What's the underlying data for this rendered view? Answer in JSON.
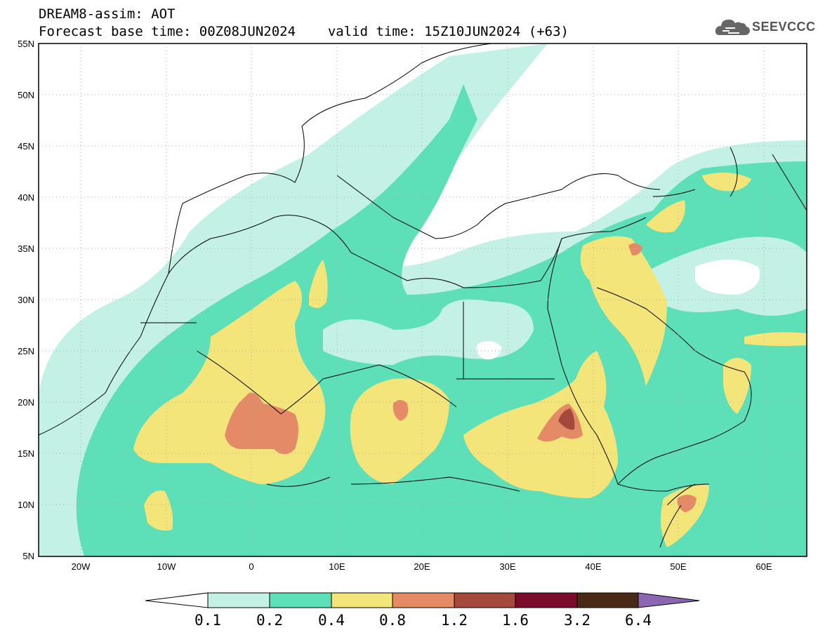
{
  "header": {
    "line1": "DREAM8-assim: AOT",
    "base_time": "Forecast base time: 00Z08JUN2024",
    "valid_time": "valid time: 15Z10JUN2024 (+63)"
  },
  "logo": {
    "text": "SEEVCCC",
    "icon": "cloud-icon"
  },
  "map": {
    "lat_ticks": [
      "55N",
      "50N",
      "45N",
      "40N",
      "35N",
      "30N",
      "25N",
      "20N",
      "15N",
      "10N",
      "5N"
    ],
    "lon_ticks": [
      "20W",
      "10W",
      "0",
      "10E",
      "20E",
      "30E",
      "40E",
      "50E",
      "60E"
    ],
    "grid": true,
    "region": "North Africa, Europe, Middle East"
  },
  "colorbar": {
    "labels": [
      "0.1",
      "0.2",
      "0.4",
      "0.8",
      "1.2",
      "1.6",
      "3.2",
      "6.4"
    ],
    "colors": [
      "#c4f1e6",
      "#5ddfb8",
      "#f4e57a",
      "#e58a66",
      "#a6493d",
      "#7a0b2b",
      "#4a2a16"
    ],
    "over_color": "#8c66b2",
    "under_color": "#ffffff"
  }
}
